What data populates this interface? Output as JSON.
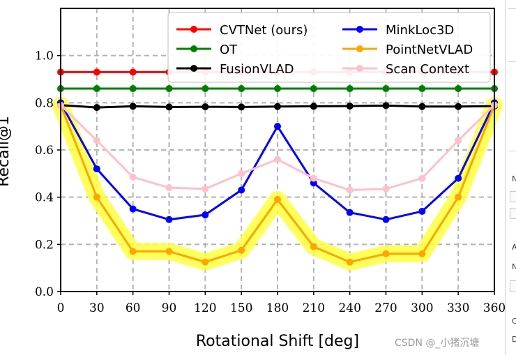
{
  "chart_data": {
    "type": "line",
    "xlabel": "Rotational Shift [deg]",
    "ylabel": "Recall@1",
    "x": [
      0,
      30,
      60,
      90,
      120,
      150,
      180,
      210,
      240,
      270,
      300,
      330,
      360
    ],
    "xlim": [
      0,
      360
    ],
    "ylim": [
      0,
      1.2
    ],
    "yticks": [
      0.0,
      0.2,
      0.4,
      0.6,
      0.8,
      1.0
    ],
    "xtick_labels": [
      "0",
      "30",
      "60",
      "90",
      "120",
      "150",
      "180",
      "210",
      "240",
      "270",
      "300",
      "330",
      "360"
    ],
    "ytick_labels": [
      "0.0",
      "0.2",
      "0.4",
      "0.6",
      "0.8",
      "1.0"
    ],
    "grid": true,
    "legend_position": "top-right",
    "series": [
      {
        "name": "CVTNet (ours)",
        "color": "#ff0000",
        "values": [
          0.93,
          0.93,
          0.93,
          0.93,
          0.93,
          0.93,
          0.93,
          0.93,
          0.93,
          0.93,
          0.93,
          0.93,
          0.93
        ]
      },
      {
        "name": "OT",
        "color": "#008000",
        "values": [
          0.86,
          0.86,
          0.86,
          0.86,
          0.86,
          0.86,
          0.86,
          0.86,
          0.86,
          0.86,
          0.86,
          0.86,
          0.86
        ]
      },
      {
        "name": "FusionVLAD",
        "color": "#000000",
        "values": [
          0.79,
          0.78,
          0.785,
          0.782,
          0.783,
          0.782,
          0.784,
          0.785,
          0.786,
          0.788,
          0.784,
          0.784,
          0.786
        ]
      },
      {
        "name": "MinkLoc3D",
        "color": "#0000ff",
        "values": [
          0.8,
          0.52,
          0.35,
          0.305,
          0.325,
          0.43,
          0.7,
          0.46,
          0.335,
          0.305,
          0.34,
          0.48,
          0.8
        ]
      },
      {
        "name": "PointNetVLAD",
        "color": "#ffa500",
        "highlight": "#ffff40",
        "values": [
          0.79,
          0.4,
          0.17,
          0.17,
          0.125,
          0.175,
          0.39,
          0.19,
          0.125,
          0.16,
          0.16,
          0.4,
          0.79
        ]
      },
      {
        "name": "Scan Context",
        "color": "#ffc0cb",
        "values": [
          0.79,
          0.64,
          0.485,
          0.44,
          0.435,
          0.5,
          0.56,
          0.48,
          0.43,
          0.435,
          0.48,
          0.64,
          0.79
        ]
      }
    ]
  },
  "watermark": "CSDN @_小猪沉塘",
  "side_panel": {
    "letters": [
      "N",
      "A",
      "N",
      "C",
      "D"
    ]
  }
}
